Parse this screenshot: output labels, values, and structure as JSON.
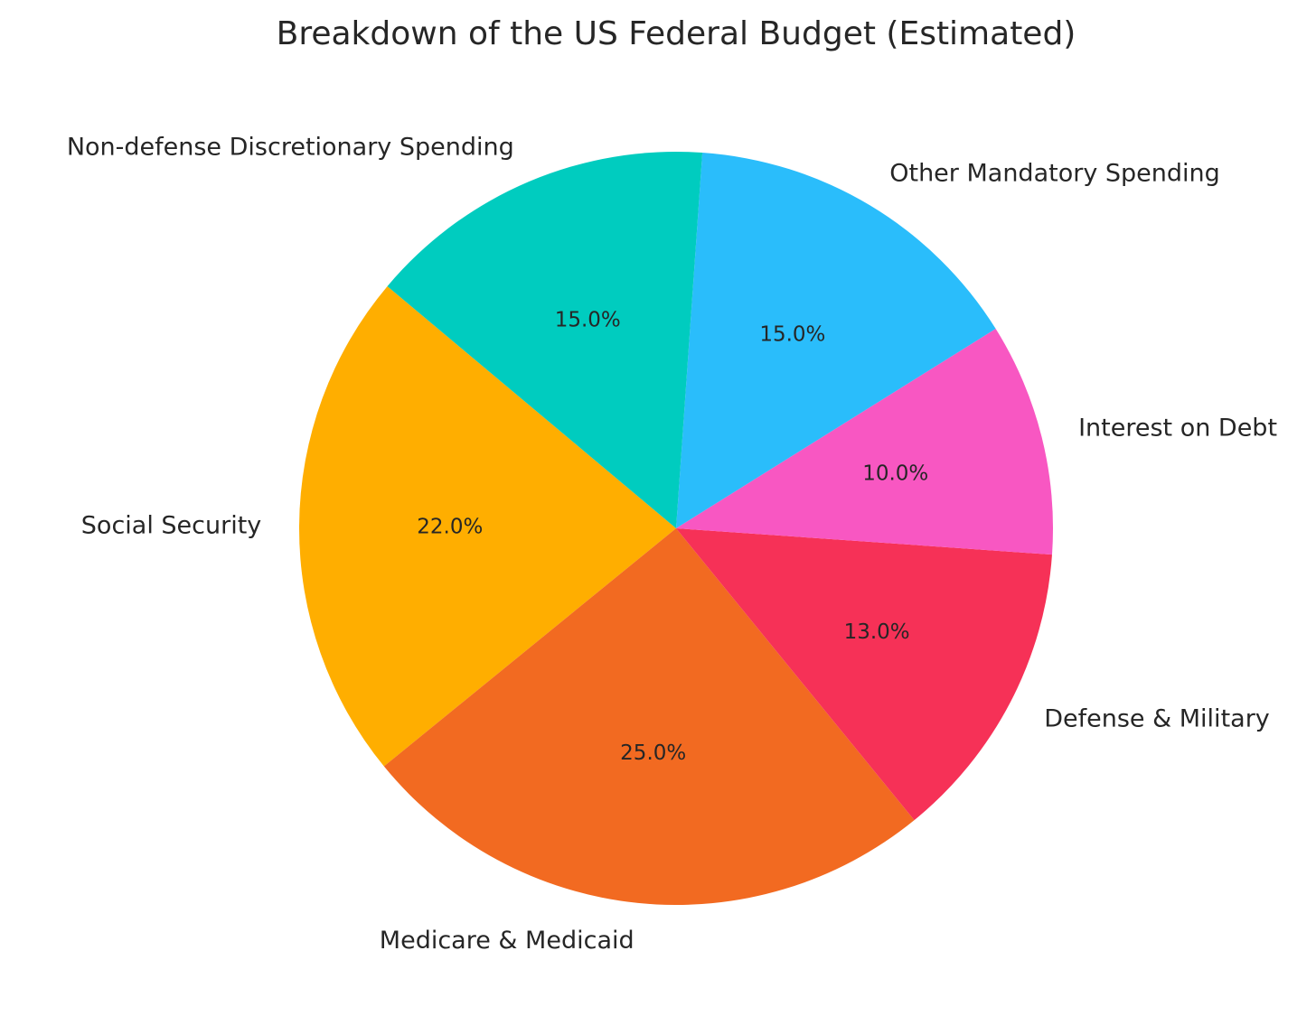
{
  "chart_data": {
    "type": "pie",
    "title": "Breakdown of the US Federal Budget (Estimated)",
    "start_angle_deg": 140,
    "direction": "counterclockwise",
    "categories": [
      "Social Security",
      "Medicare & Medicaid",
      "Defense & Military",
      "Interest on Debt",
      "Other Mandatory Spending",
      "Non-defense Discretionary Spending"
    ],
    "values": [
      22,
      25,
      13,
      10,
      15,
      15
    ],
    "percent_labels": [
      "22.0%",
      "25.0%",
      "13.0%",
      "10.0%",
      "15.0%",
      "15.0%"
    ],
    "colors": [
      "#FFAE00",
      "#F26A21",
      "#F63157",
      "#F857C2",
      "#2ABDFB",
      "#00CCBF"
    ],
    "legend": "none"
  }
}
